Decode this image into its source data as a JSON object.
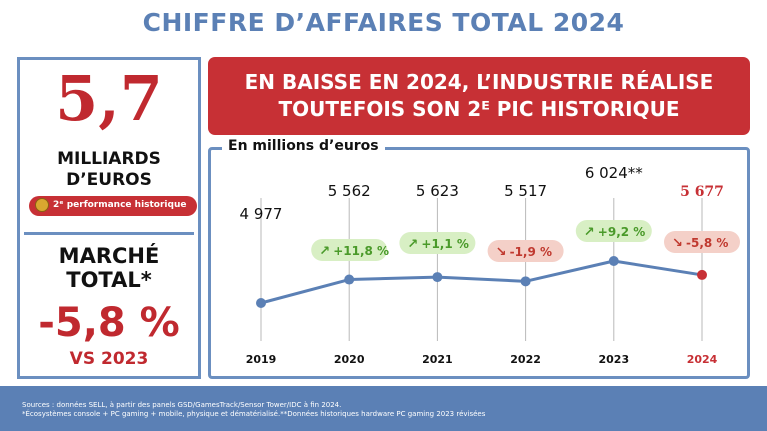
{
  "title": "CHIFFRE D’AFFAIRES TOTAL 2024",
  "left_panel": {
    "big_value": "5,7",
    "unit_line1": "MILLIARDS",
    "unit_line2": "D’EUROS",
    "performance_badge": "2ᵉ performance historique",
    "market_line1": "MARCHÉ",
    "market_line2": "TOTAL*",
    "market_change": "-5,8 %",
    "comparison": "VS 2023"
  },
  "banner": {
    "line1": "EN BAISSE EN 2024, L’INDUSTRIE RÉALISE",
    "line2": "TOUTEFOIS SON 2ᴱ PIC HISTORIQUE"
  },
  "footer": {
    "line1": "Sources : données SELL, à partir des panels GSD/GamesTrack/Sensor Tower/IDC à fin 2024.",
    "line2": "*Écosystèmes console + PC gaming + mobile, physique et dématérialisé.**Données historiques hardware PC gaming 2023 révisées"
  },
  "colors": {
    "accent_blue": "#5b80b5",
    "brand_red": "#c73035",
    "up_green_bg": "#d8efc4",
    "up_green_text": "#4a9a2a",
    "down_red_bg": "#f4d0c8",
    "down_red_text": "#c0392f"
  },
  "chart_data": {
    "type": "line",
    "ylabel": "En millions d’euros",
    "x": [
      "2019",
      "2020",
      "2021",
      "2022",
      "2023",
      "2024"
    ],
    "values": [
      4977,
      5562,
      5623,
      5517,
      6024,
      5677
    ],
    "value_labels": [
      "4 977",
      "5 562",
      "5 623",
      "5 517",
      "6 024**",
      "5 677"
    ],
    "changes": [
      null,
      "+11,8 %",
      "+1,1 %",
      "-1,9 %",
      "+9,2 %",
      "-5,8 %"
    ],
    "change_direction": [
      null,
      "up",
      "up",
      "down",
      "up",
      "down"
    ],
    "highlight_index": 5,
    "ylim": [
      4977,
      6024
    ],
    "grid": false
  }
}
